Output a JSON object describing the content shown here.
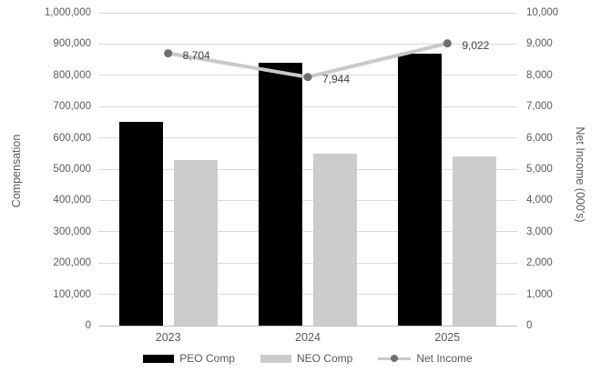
{
  "chart_data": {
    "type": "bar",
    "subtype": "combo-bar-line",
    "categories": [
      "2023",
      "2024",
      "2025"
    ],
    "series": [
      {
        "name": "PEO Comp",
        "kind": "bar",
        "axis": "left",
        "color": "#000000",
        "values": [
          650000,
          840000,
          870000
        ]
      },
      {
        "name": "NEO Comp",
        "kind": "bar",
        "axis": "left",
        "color": "#cccccc",
        "values": [
          530000,
          550000,
          540000
        ]
      },
      {
        "name": "Net Income",
        "kind": "line",
        "axis": "right",
        "line_color": "#c9c9c9",
        "marker_color": "#6e6e6e",
        "values": [
          8704,
          7944,
          9022
        ],
        "data_labels": [
          "8,704",
          "7,944",
          "9,022"
        ]
      }
    ],
    "left_axis": {
      "title": "Compensation",
      "min": 0,
      "max": 1000000,
      "step": 100000,
      "tick_labels": [
        "1,000,000",
        "900,000",
        "800,000",
        "700,000",
        "600,000",
        "500,000",
        "400,000",
        "300,000",
        "200,000",
        "100,000",
        "0"
      ]
    },
    "right_axis": {
      "title": "Net Income (000's)",
      "min": 0,
      "max": 10000,
      "step": 1000,
      "tick_labels": [
        "10,000",
        "9,000",
        "8,000",
        "7,000",
        "6,000",
        "5,000",
        "4,000",
        "3,000",
        "2,000",
        "1,000",
        "0"
      ]
    },
    "grid": true,
    "legend_position": "bottom",
    "colors": {
      "gridline": "#d9d9d9",
      "tick_text": "#595959",
      "data_label_text": "#404040"
    }
  }
}
